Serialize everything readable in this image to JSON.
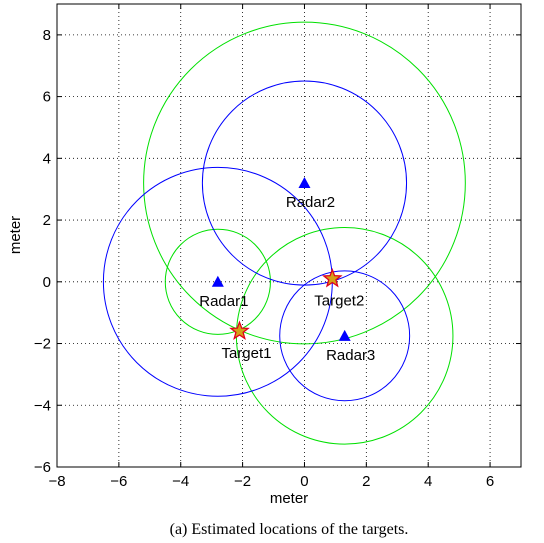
{
  "chart_data": {
    "type": "scatter",
    "title": "",
    "xlabel": "meter",
    "ylabel": "meter",
    "xlim": [
      -8,
      7
    ],
    "ylim": [
      -6,
      9
    ],
    "xticks": [
      -8,
      -6,
      -4,
      -2,
      0,
      2,
      4,
      6
    ],
    "yticks": [
      -6,
      -4,
      -2,
      0,
      2,
      4,
      6,
      8
    ],
    "grid": true,
    "grid_style": "dotted",
    "colors": {
      "radar_marker": "#0000ff",
      "blue_circles": "#0000ff",
      "green_circles": "#00e000",
      "target_fill": "#d4a017",
      "target_edge": "#e0001b"
    },
    "radars": [
      {
        "label": "Radar1",
        "x": -2.8,
        "y": 0.0
      },
      {
        "label": "Radar2",
        "x": 0.0,
        "y": 3.2
      },
      {
        "label": "Radar3",
        "x": 1.3,
        "y": -1.75
      }
    ],
    "targets": [
      {
        "label": "Target1",
        "x": -2.1,
        "y": -1.6
      },
      {
        "label": "Target2",
        "x": 0.9,
        "y": 0.1
      }
    ],
    "blue_circles": [
      {
        "cx": -2.8,
        "cy": 0.0,
        "r": 3.7
      },
      {
        "cx": 0.0,
        "cy": 3.2,
        "r": 3.3
      },
      {
        "cx": 1.3,
        "cy": -1.75,
        "r": 2.1
      }
    ],
    "green_circles": [
      {
        "cx": -2.8,
        "cy": 0.0,
        "r": 1.7
      },
      {
        "cx": 0.0,
        "cy": 3.2,
        "r": 5.2
      },
      {
        "cx": 1.3,
        "cy": -1.75,
        "r": 3.5
      }
    ]
  },
  "caption": "(a) Estimated locations of the targets."
}
